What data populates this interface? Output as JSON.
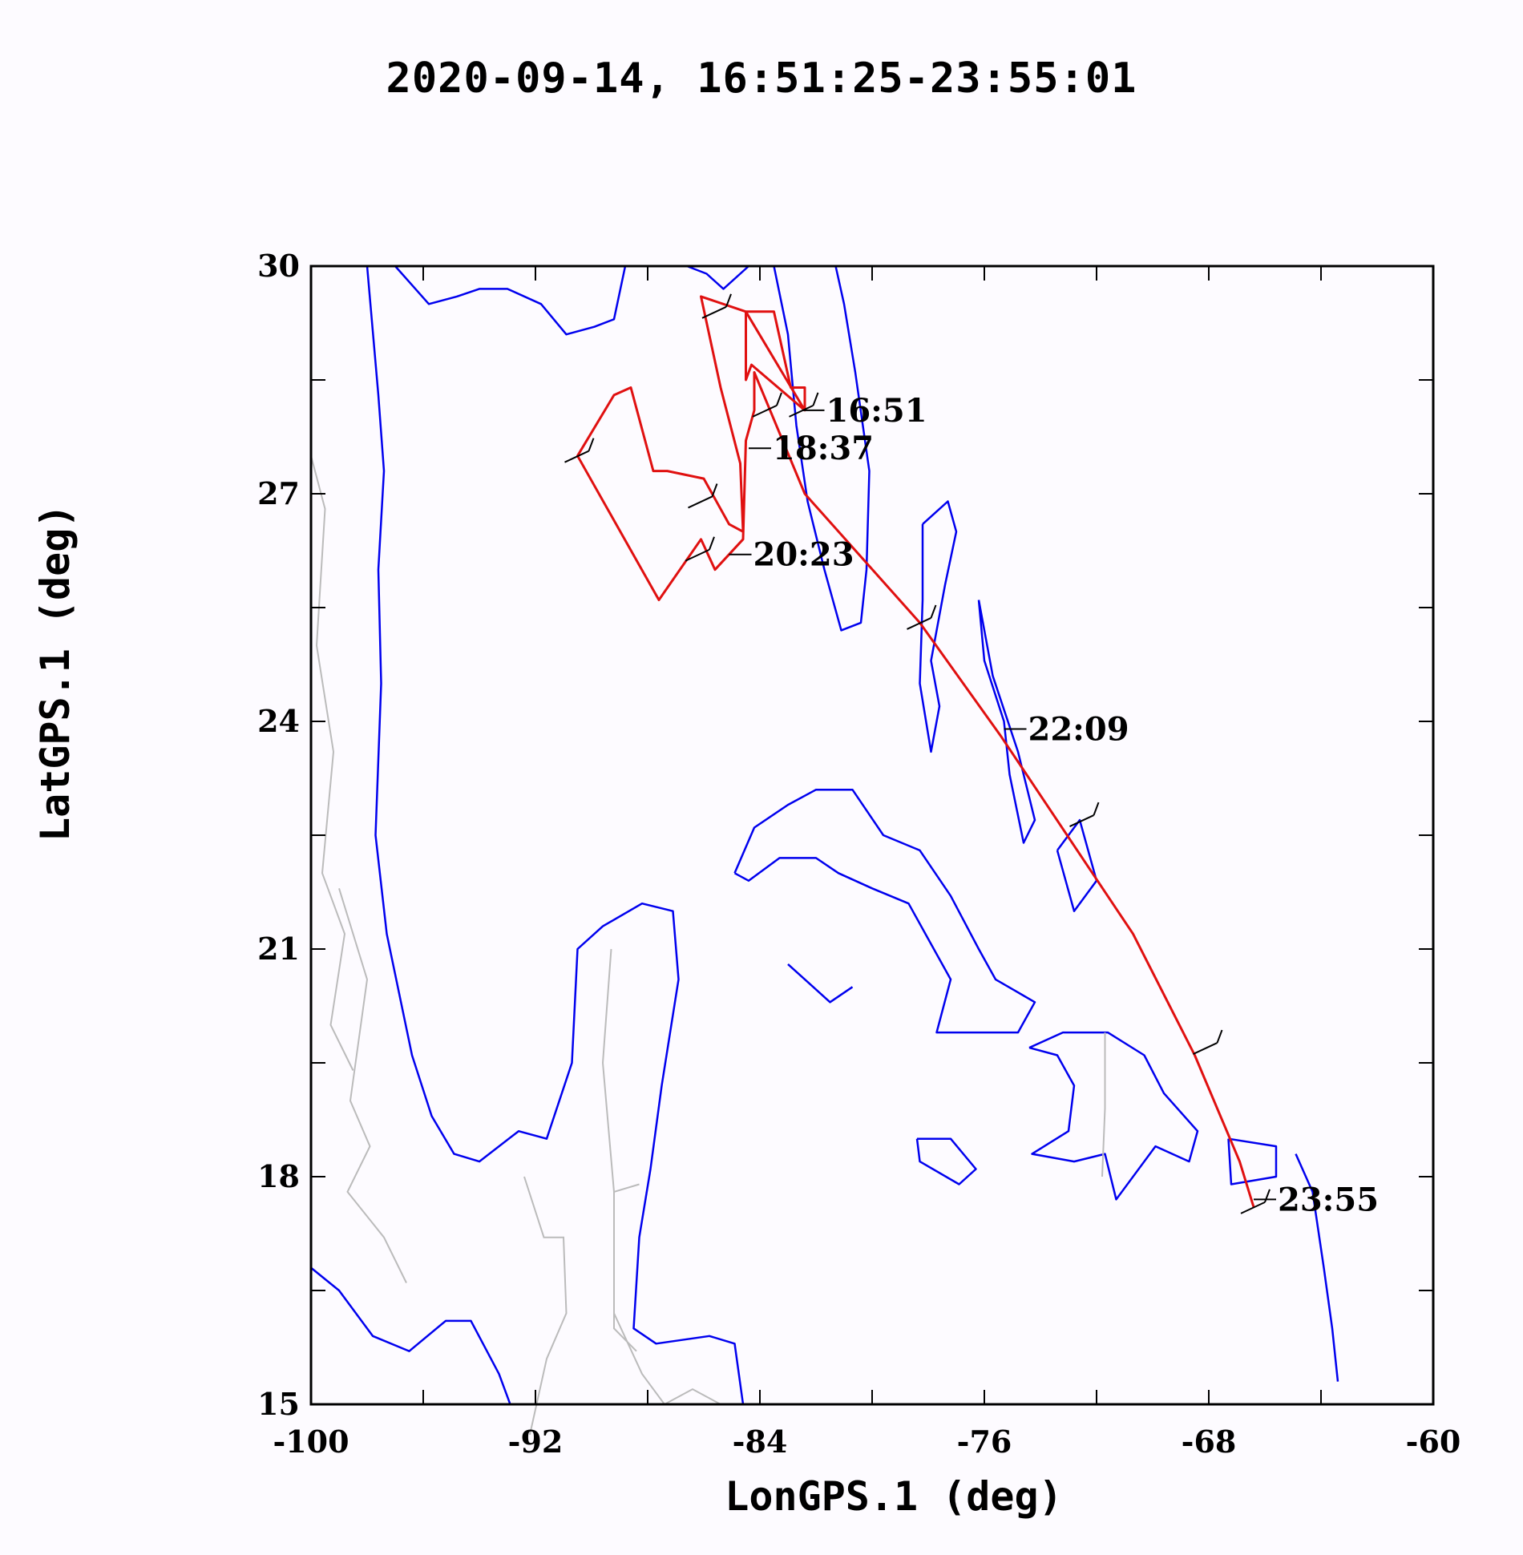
{
  "chart_data": {
    "type": "map-track",
    "title": "2020-09-14, 16:51:25-23:55:01",
    "xlabel": "LonGPS.1 (deg)",
    "ylabel": "LatGPS.1 (deg)",
    "xlim": [
      -100,
      -60
    ],
    "ylim": [
      15,
      30
    ],
    "x_ticks": [
      -100,
      -92,
      -84,
      -76,
      -68,
      -60
    ],
    "y_ticks": [
      15,
      18,
      21,
      24,
      27,
      30
    ],
    "x_minor_step": 4,
    "y_minor_step": 1.5,
    "colors": {
      "track": "#e01010",
      "coastline": "#0000ee",
      "borders": "#bbbbbb",
      "axes": "#000000"
    },
    "track": [
      [
        -82.4,
        28.1
      ],
      [
        -84.3,
        28.7
      ],
      [
        -84.5,
        28.5
      ],
      [
        -84.5,
        29.4
      ],
      [
        -83.5,
        29.4
      ],
      [
        -82.9,
        28.4
      ],
      [
        -82.4,
        28.4
      ],
      [
        -82.4,
        28.1
      ],
      [
        -84.5,
        29.4
      ],
      [
        -86.1,
        29.6
      ],
      [
        -85.4,
        28.4
      ],
      [
        -84.7,
        27.4
      ],
      [
        -84.6,
        26.5
      ],
      [
        -85.1,
        26.6
      ],
      [
        -86.0,
        27.2
      ],
      [
        -87.3,
        27.3
      ],
      [
        -87.8,
        27.3
      ],
      [
        -88.6,
        28.4
      ],
      [
        -89.2,
        28.3
      ],
      [
        -90.5,
        27.5
      ],
      [
        -87.6,
        25.6
      ],
      [
        -86.1,
        26.4
      ],
      [
        -85.6,
        26.0
      ],
      [
        -84.6,
        26.4
      ],
      [
        -84.5,
        27.7
      ],
      [
        -84.2,
        28.1
      ],
      [
        -84.2,
        28.6
      ],
      [
        -82.4,
        27.0
      ],
      [
        -78.3,
        25.3
      ],
      [
        -75.4,
        23.8
      ],
      [
        -70.7,
        21.2
      ],
      [
        -68.5,
        19.6
      ],
      [
        -66.9,
        18.2
      ],
      [
        -66.4,
        17.6
      ]
    ],
    "wind_barbs": [
      [
        -82.5,
        28.1
      ],
      [
        -83.8,
        28.1
      ],
      [
        -90.5,
        27.5
      ],
      [
        -86.1,
        26.9
      ],
      [
        -86.2,
        26.2
      ],
      [
        -85.6,
        29.4
      ],
      [
        -78.3,
        25.3
      ],
      [
        -72.5,
        22.7
      ],
      [
        -68.1,
        19.7
      ],
      [
        -66.4,
        17.6
      ]
    ],
    "time_labels": [
      {
        "text": "16:51",
        "lon": -82.5,
        "lat": 28.1
      },
      {
        "text": "18:37",
        "lon": -84.4,
        "lat": 27.6
      },
      {
        "text": "20:23",
        "lon": -85.1,
        "lat": 26.2
      },
      {
        "text": "22:09",
        "lon": -75.3,
        "lat": 23.9
      },
      {
        "text": "23:55",
        "lon": -66.4,
        "lat": 17.7
      }
    ]
  }
}
